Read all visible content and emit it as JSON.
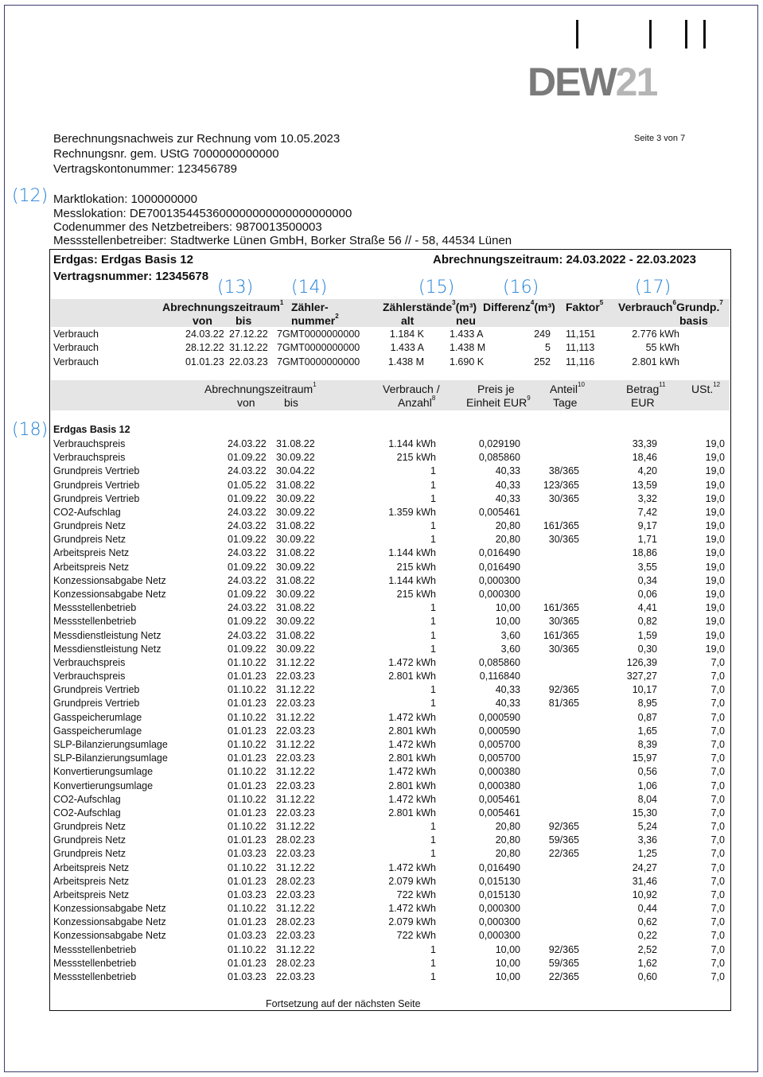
{
  "logo": {
    "text": "DEW21",
    "main": "DEW",
    "accent": "21"
  },
  "page_number": "Seite 3 von 7",
  "header": {
    "line1": "Berechnungsnachweis zur Rechnung vom 10.05.2023",
    "line2": "Rechnungsnr. gem. UStG   7000000000000",
    "line3": "Vertragskontonummer: 123456789",
    "marktlokation": "Marktlokation: 1000000000",
    "messlokation": "Messlokation: DE7001354453600000000000000000000",
    "codenummer": "Codenummer des Netzbetreibers: 9870013500003",
    "messstellenbetreiber": "Messstellenbetreiber: Stadtwerke Lünen GmbH, Borker Straße 56 // - 58, 44534 Lünen"
  },
  "annotations": {
    "a12": "(12)",
    "a13": "(13)",
    "a14": "(14)",
    "a15": "(15)",
    "a16": "(16)",
    "a17": "(17)",
    "a18": "(18)"
  },
  "contract": {
    "title": "Erdgas: Erdgas Basis 12",
    "number": "Vertragsnummer: 12345678",
    "period": "Abrechnungszeitraum: 24.03.2022 - 22.03.2023"
  },
  "meter_table": {
    "headers": {
      "zeitraum": "Abrechnungszeitraum",
      "zeitraum_sup": "1",
      "von": "von",
      "bis": "bis",
      "zaehler1": "Zähler-",
      "zaehler2": "nummer",
      "zaehler_sup": "2",
      "staende": "Zählerstände",
      "staende_sup": "3",
      "staende_unit": "(m³)",
      "alt": "alt",
      "neu": "neu",
      "differenz": "Differenz",
      "differenz_sup": "4",
      "differenz_unit": "(m³)",
      "faktor": "Faktor",
      "faktor_sup": "5",
      "verbrauch": "Verbrauch",
      "verbrauch_sup": "6",
      "grundp": "Grundp.",
      "grundp_sup": "7",
      "basis": "basis"
    },
    "rows": [
      [
        "Verbrauch",
        "24.03.22",
        "27.12.22",
        "7GMT0000000000",
        "1.184 K",
        "1.433 A",
        "249",
        "11,151",
        "2.776 kWh"
      ],
      [
        "Verbrauch",
        "28.12.22",
        "31.12.22",
        "7GMT0000000000",
        "1.433 A",
        "1.438 M",
        "5",
        "11,113",
        "55 kWh"
      ],
      [
        "Verbrauch",
        "01.01.23",
        "22.03.23",
        "7GMT0000000000",
        "1.438 M",
        "1.690 K",
        "252",
        "11,116",
        "2.801 kWh"
      ]
    ]
  },
  "charges_table": {
    "headers": {
      "zeitraum": "Abrechnungszeitraum",
      "zeitraum_sup": "1",
      "von": "von",
      "bis": "bis",
      "verbrauch1": "Verbrauch /",
      "verbrauch2": "Anzahl",
      "verbrauch_sup": "8",
      "preis1": "Preis je",
      "preis2": "Einheit EUR",
      "preis_sup": "9",
      "anteil1": "Anteil",
      "anteil_sup": "10",
      "anteil2": "Tage",
      "betrag1": "Betrag",
      "betrag_sup": "11",
      "betrag2": "EUR",
      "ust": "USt.",
      "ust_sup": "12"
    },
    "section_title": "Erdgas Basis 12",
    "rows": [
      [
        "Verbrauchspreis",
        "24.03.22",
        "31.08.22",
        "1.144 kWh",
        "0,029190",
        "",
        "33,39",
        "19,0"
      ],
      [
        "Verbrauchspreis",
        "01.09.22",
        "30.09.22",
        "215 kWh",
        "0,085860",
        "",
        "18,46",
        "19,0"
      ],
      [
        "Grundpreis Vertrieb",
        "24.03.22",
        "30.04.22",
        "1",
        "40,33",
        "38/365",
        "4,20",
        "19,0"
      ],
      [
        "Grundpreis Vertrieb",
        "01.05.22",
        "31.08.22",
        "1",
        "40,33",
        "123/365",
        "13,59",
        "19,0"
      ],
      [
        "Grundpreis Vertrieb",
        "01.09.22",
        "30.09.22",
        "1",
        "40,33",
        "30/365",
        "3,32",
        "19,0"
      ],
      [
        "CO2-Aufschlag",
        "24.03.22",
        "30.09.22",
        "1.359 kWh",
        "0,005461",
        "",
        "7,42",
        "19,0"
      ],
      [
        "Grundpreis Netz",
        "24.03.22",
        "31.08.22",
        "1",
        "20,80",
        "161/365",
        "9,17",
        "19,0"
      ],
      [
        "Grundpreis Netz",
        "01.09.22",
        "30.09.22",
        "1",
        "20,80",
        "30/365",
        "1,71",
        "19,0"
      ],
      [
        "Arbeitspreis Netz",
        "24.03.22",
        "31.08.22",
        "1.144 kWh",
        "0,016490",
        "",
        "18,86",
        "19,0"
      ],
      [
        "Arbeitspreis Netz",
        "01.09.22",
        "30.09.22",
        "215 kWh",
        "0,016490",
        "",
        "3,55",
        "19,0"
      ],
      [
        "Konzessionsabgabe Netz",
        "24.03.22",
        "31.08.22",
        "1.144 kWh",
        "0,000300",
        "",
        "0,34",
        "19,0"
      ],
      [
        "Konzessionsabgabe Netz",
        "01.09.22",
        "30.09.22",
        "215 kWh",
        "0,000300",
        "",
        "0,06",
        "19,0"
      ],
      [
        "Messstellenbetrieb",
        "24.03.22",
        "31.08.22",
        "1",
        "10,00",
        "161/365",
        "4,41",
        "19,0"
      ],
      [
        "Messstellenbetrieb",
        "01.09.22",
        "30.09.22",
        "1",
        "10,00",
        "30/365",
        "0,82",
        "19,0"
      ],
      [
        "Messdienstleistung Netz",
        "24.03.22",
        "31.08.22",
        "1",
        "3,60",
        "161/365",
        "1,59",
        "19,0"
      ],
      [
        "Messdienstleistung Netz",
        "01.09.22",
        "30.09.22",
        "1",
        "3,60",
        "30/365",
        "0,30",
        "19,0"
      ],
      [
        "Verbrauchspreis",
        "01.10.22",
        "31.12.22",
        "1.472 kWh",
        "0,085860",
        "",
        "126,39",
        "7,0"
      ],
      [
        "Verbrauchspreis",
        "01.01.23",
        "22.03.23",
        "2.801 kWh",
        "0,116840",
        "",
        "327,27",
        "7,0"
      ],
      [
        "Grundpreis Vertrieb",
        "01.10.22",
        "31.12.22",
        "1",
        "40,33",
        "92/365",
        "10,17",
        "7,0"
      ],
      [
        "Grundpreis Vertrieb",
        "01.01.23",
        "22.03.23",
        "1",
        "40,33",
        "81/365",
        "8,95",
        "7,0"
      ],
      [
        "Gasspeicherumlage",
        "01.10.22",
        "31.12.22",
        "1.472 kWh",
        "0,000590",
        "",
        "0,87",
        "7,0"
      ],
      [
        "Gasspeicherumlage",
        "01.01.23",
        "22.03.23",
        "2.801 kWh",
        "0,000590",
        "",
        "1,65",
        "7,0"
      ],
      [
        "SLP-Bilanzierungsumlage",
        "01.10.22",
        "31.12.22",
        "1.472 kWh",
        "0,005700",
        "",
        "8,39",
        "7,0"
      ],
      [
        "SLP-Bilanzierungsumlage",
        "01.01.23",
        "22.03.23",
        "2.801 kWh",
        "0,005700",
        "",
        "15,97",
        "7,0"
      ],
      [
        "Konvertierungsumlage",
        "01.10.22",
        "31.12.22",
        "1.472 kWh",
        "0,000380",
        "",
        "0,56",
        "7,0"
      ],
      [
        "Konvertierungsumlage",
        "01.01.23",
        "22.03.23",
        "2.801 kWh",
        "0,000380",
        "",
        "1,06",
        "7,0"
      ],
      [
        "CO2-Aufschlag",
        "01.10.22",
        "31.12.22",
        "1.472 kWh",
        "0,005461",
        "",
        "8,04",
        "7,0"
      ],
      [
        "CO2-Aufschlag",
        "01.01.23",
        "22.03.23",
        "2.801 kWh",
        "0,005461",
        "",
        "15,30",
        "7,0"
      ],
      [
        "Grundpreis Netz",
        "01.10.22",
        "31.12.22",
        "1",
        "20,80",
        "92/365",
        "5,24",
        "7,0"
      ],
      [
        "Grundpreis Netz",
        "01.01.23",
        "28.02.23",
        "1",
        "20,80",
        "59/365",
        "3,36",
        "7,0"
      ],
      [
        "Grundpreis Netz",
        "01.03.23",
        "22.03.23",
        "1",
        "20,80",
        "22/365",
        "1,25",
        "7,0"
      ],
      [
        "Arbeitspreis Netz",
        "01.10.22",
        "31.12.22",
        "1.472 kWh",
        "0,016490",
        "",
        "24,27",
        "7,0"
      ],
      [
        "Arbeitspreis Netz",
        "01.01.23",
        "28.02.23",
        "2.079 kWh",
        "0,015130",
        "",
        "31,46",
        "7,0"
      ],
      [
        "Arbeitspreis Netz",
        "01.03.23",
        "22.03.23",
        "722 kWh",
        "0,015130",
        "",
        "10,92",
        "7,0"
      ],
      [
        "Konzessionsabgabe Netz",
        "01.10.22",
        "31.12.22",
        "1.472 kWh",
        "0,000300",
        "",
        "0,44",
        "7,0"
      ],
      [
        "Konzessionsabgabe Netz",
        "01.01.23",
        "28.02.23",
        "2.079 kWh",
        "0,000300",
        "",
        "0,62",
        "7,0"
      ],
      [
        "Konzessionsabgabe Netz",
        "01.03.23",
        "22.03.23",
        "722 kWh",
        "0,000300",
        "",
        "0,22",
        "7,0"
      ],
      [
        "Messstellenbetrieb",
        "01.10.22",
        "31.12.22",
        "1",
        "10,00",
        "92/365",
        "2,52",
        "7,0"
      ],
      [
        "Messstellenbetrieb",
        "01.01.23",
        "28.02.23",
        "1",
        "10,00",
        "59/365",
        "1,62",
        "7,0"
      ],
      [
        "Messstellenbetrieb",
        "01.03.23",
        "22.03.23",
        "1",
        "10,00",
        "22/365",
        "0,60",
        "7,0"
      ]
    ]
  },
  "footer": "Fortsetzung auf der nächsten Seite",
  "colors": {
    "annotation": "#1f7ed6",
    "band": "#e5e5e5",
    "border": "#3b3a6e"
  }
}
